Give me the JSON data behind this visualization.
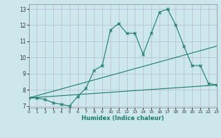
{
  "xlabel": "Humidex (Indice chaleur)",
  "xlim": [
    0,
    23
  ],
  "ylim": [
    6.9,
    13.3
  ],
  "yticks": [
    7,
    8,
    9,
    10,
    11,
    12,
    13
  ],
  "xticks": [
    0,
    1,
    2,
    3,
    4,
    5,
    6,
    7,
    8,
    9,
    10,
    11,
    12,
    13,
    14,
    15,
    16,
    17,
    18,
    19,
    20,
    21,
    22,
    23
  ],
  "bg_color": "#cce8ec",
  "line_color": "#1a7a6a",
  "grid_color_major": "#b8b8d0",
  "grid_color_minor": "#d8d8e8",
  "series1_x": [
    0,
    1,
    2,
    3,
    4,
    5,
    6,
    7,
    8,
    9,
    10,
    11,
    12,
    13,
    14,
    15,
    16,
    17,
    18,
    19,
    20,
    21,
    22,
    23
  ],
  "series1_y": [
    7.5,
    7.5,
    7.4,
    7.2,
    7.1,
    7.0,
    7.6,
    8.1,
    9.2,
    9.5,
    11.7,
    12.1,
    11.5,
    11.5,
    10.2,
    11.5,
    12.8,
    13.0,
    12.0,
    10.7,
    9.5,
    9.5,
    8.4,
    8.3
  ],
  "series2_x": [
    0,
    23
  ],
  "series2_y": [
    7.5,
    8.3
  ],
  "series3_x": [
    0,
    23
  ],
  "series3_y": [
    7.5,
    10.7
  ]
}
